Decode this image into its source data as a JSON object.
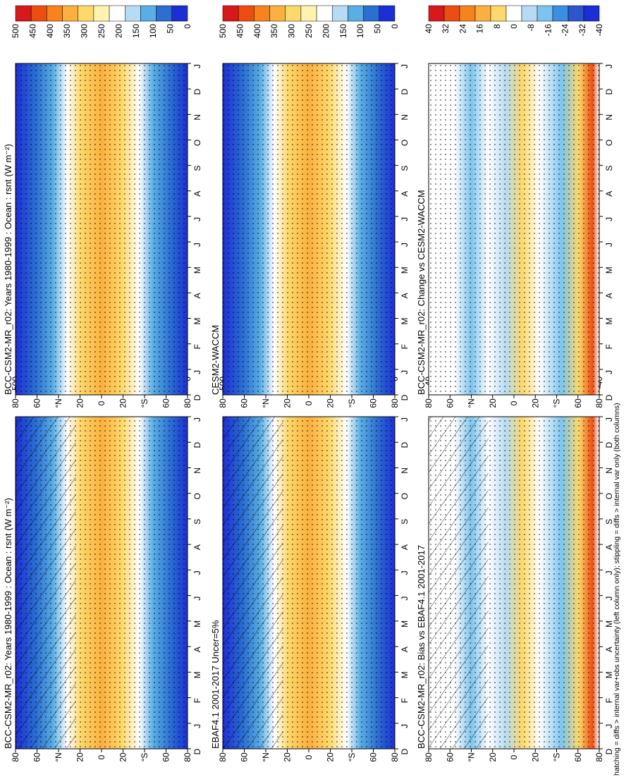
{
  "orientation_note_hidden": "",
  "footer_note": "hatching = diffs > internal var+obs uncertainty (left column only); stippling = diffs > internal var only (both columns)",
  "chart_data": [
    {
      "type": "heatmap",
      "title": "BCC-CSM2-MR_r02: Years 1980-1999 : Ocean : rsnt (W m⁻²)",
      "x": [
        "D",
        "J",
        "F",
        "M",
        "A",
        "M",
        "J",
        "J",
        "A",
        "S",
        "O",
        "N",
        "D",
        "J"
      ],
      "y_ticks": [
        "80",
        "60",
        "°N",
        "20",
        "0",
        "20",
        "°S",
        "60",
        "80"
      ],
      "colorbar": [
        "500",
        "450",
        "400",
        "350",
        "300",
        "250",
        "200",
        "150",
        "100",
        "50",
        "0"
      ],
      "kind": "mean",
      "hatching": true
    },
    {
      "type": "heatmap",
      "title": "BCC-CSM2-MR_r02: Years 1980-1999 : Ocean : rsnt (W m⁻²)",
      "x": [
        "D",
        "J",
        "F",
        "M",
        "A",
        "M",
        "J",
        "J",
        "A",
        "S",
        "O",
        "N",
        "D",
        "J"
      ],
      "y_ticks": [
        "80",
        "60",
        "°N",
        "20",
        "0",
        "20",
        "°S",
        "60",
        "80"
      ],
      "colorbar": [
        "500",
        "450",
        "400",
        "350",
        "300",
        "250",
        "200",
        "150",
        "100",
        "50",
        "0"
      ],
      "kind": "mean",
      "hatching": false
    },
    {
      "type": "heatmap",
      "title": "EBAF4.1 2001-2017 Uncer=5%",
      "x": [
        "D",
        "J",
        "F",
        "M",
        "A",
        "M",
        "J",
        "J",
        "A",
        "S",
        "O",
        "N",
        "D",
        "J"
      ],
      "y_ticks": [
        "80",
        "60",
        "°N",
        "20",
        "0",
        "20",
        "°S",
        "60",
        "80"
      ],
      "colorbar": [
        "500",
        "450",
        "400",
        "350",
        "300",
        "250",
        "200",
        "150",
        "100",
        "50",
        "0"
      ],
      "kind": "mean",
      "hatching": true
    },
    {
      "type": "heatmap",
      "title": "CESM2-WACCM",
      "x": [
        "D",
        "J",
        "F",
        "M",
        "A",
        "M",
        "J",
        "J",
        "A",
        "S",
        "O",
        "N",
        "D",
        "J"
      ],
      "y_ticks": [
        "80",
        "60",
        "°N",
        "20",
        "0",
        "20",
        "°S",
        "60",
        "80"
      ],
      "colorbar": [
        "500",
        "450",
        "400",
        "350",
        "300",
        "250",
        "200",
        "150",
        "100",
        "50",
        "0"
      ],
      "kind": "mean",
      "hatching": false
    },
    {
      "type": "heatmap",
      "title": "BCC-CSM2-MR_r02: Bias vs EBAF4.1 2001-2017",
      "x": [
        "D",
        "J",
        "F",
        "M",
        "A",
        "M",
        "J",
        "J",
        "A",
        "S",
        "O",
        "N",
        "D",
        "J"
      ],
      "y_ticks": [
        "80",
        "60",
        "°N",
        "20",
        "0",
        "20",
        "°S",
        "60",
        "80"
      ],
      "colorbar": [
        "40",
        "32",
        "24",
        "16",
        "8",
        "0",
        "-8",
        "-16",
        "-24",
        "-32",
        "-40"
      ],
      "kind": "diff",
      "hatching": true
    },
    {
      "type": "heatmap",
      "title": "BCC-CSM2-MR_r02: Change vs CESM2-WACCM",
      "x": [
        "D",
        "J",
        "F",
        "M",
        "A",
        "M",
        "J",
        "J",
        "A",
        "S",
        "O",
        "N",
        "D",
        "J"
      ],
      "y_ticks": [
        "80",
        "60",
        "°N",
        "20",
        "0",
        "20",
        "°S",
        "60",
        "80"
      ],
      "colorbar": [
        "40",
        "32",
        "24",
        "16",
        "8",
        "0",
        "-8",
        "-16",
        "-24",
        "-32",
        "-40"
      ],
      "kind": "diff",
      "hatching": false
    }
  ]
}
